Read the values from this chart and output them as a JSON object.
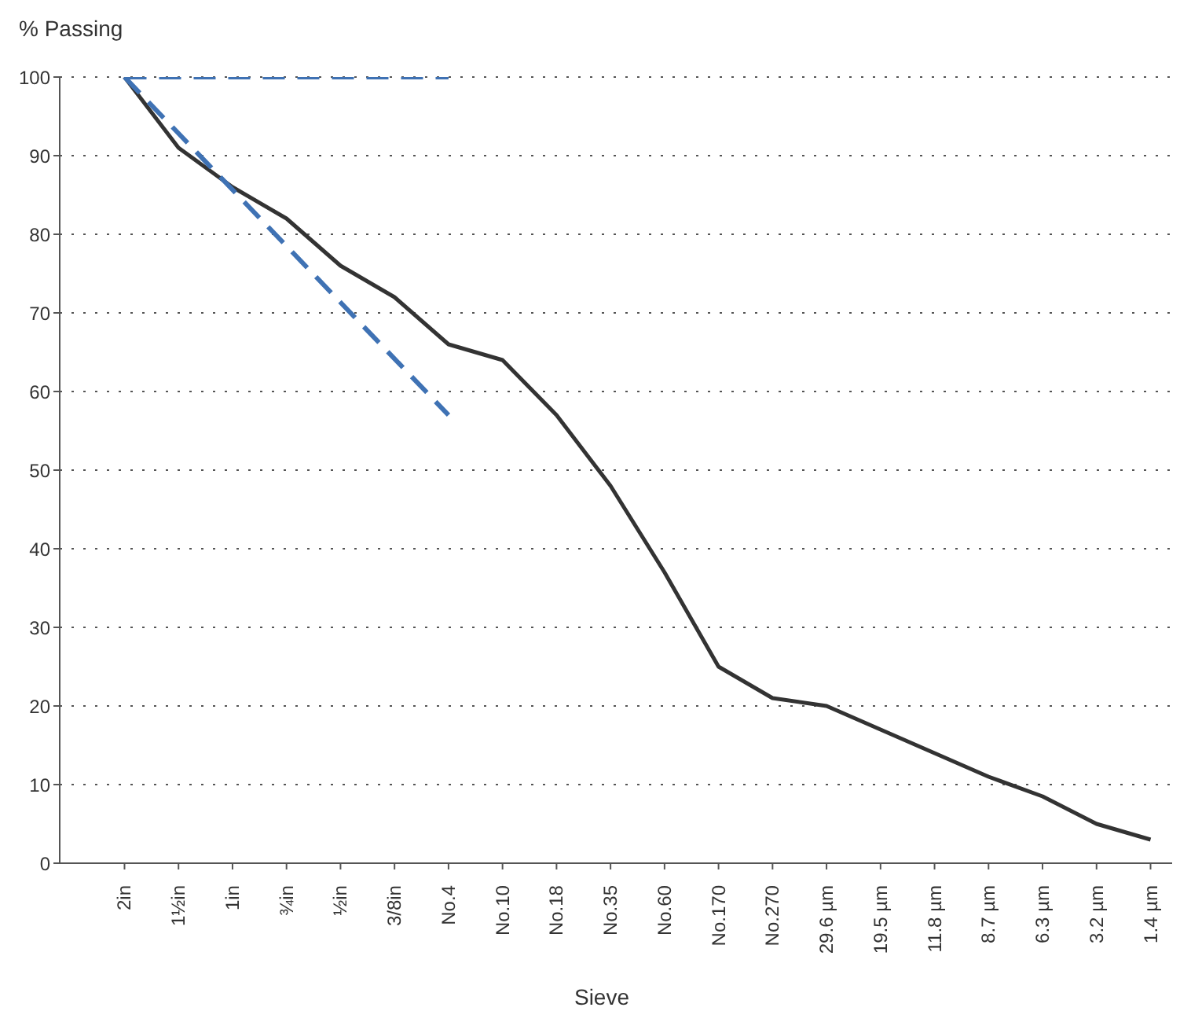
{
  "chart_data": {
    "type": "line",
    "ylabel": "% Passing",
    "xlabel": "Sieve",
    "grid": "y",
    "marker": "none",
    "categories": [
      "2in",
      "1½in",
      "1in",
      "¾in",
      "½in",
      "3/8in",
      "No.4",
      "No.10",
      "No.18",
      "No.35",
      "No.60",
      "No.170",
      "No.270",
      "29.6 µm",
      "19.5 µm",
      "11.8 µm",
      "8.7 µm",
      "6.3 µm",
      "3.2 µm",
      "1.4 µm"
    ],
    "ylim": [
      0,
      100
    ],
    "yticks": [
      0,
      10,
      20,
      30,
      40,
      50,
      60,
      70,
      80,
      90,
      100
    ],
    "series": [
      {
        "color": "#333333",
        "line_style": "solid",
        "values": [
          100,
          91,
          86,
          82,
          76,
          72,
          66,
          64,
          57,
          48,
          37,
          25,
          21,
          20,
          17,
          14,
          11,
          8.5,
          5,
          3
        ]
      },
      {
        "color": "#3f72b4",
        "line_style": "dashed",
        "x": [
          "2in",
          "No.4"
        ],
        "values": [
          100,
          100
        ]
      },
      {
        "color": "#3f72b4",
        "line_style": "dashed",
        "x": [
          "2in",
          "No.4"
        ],
        "values": [
          100,
          57
        ]
      }
    ]
  }
}
